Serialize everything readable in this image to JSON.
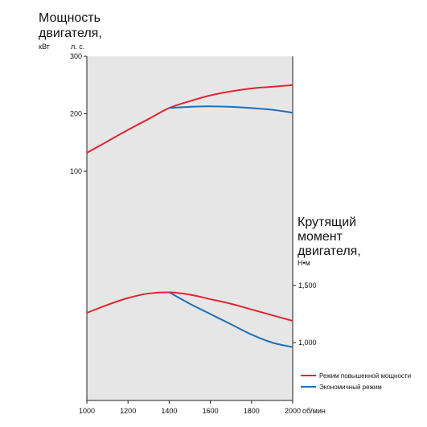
{
  "chart_data": {
    "type": "line",
    "x_ticks": [
      1000,
      1200,
      1400,
      1600,
      1800,
      2000
    ],
    "x_unit": "об/мин",
    "xlim": [
      1000,
      2000
    ],
    "power_axis": {
      "title_line1": "Мощность",
      "title_line2": "двигателя,",
      "unit_left": "кВт",
      "unit_right": "л. с.",
      "ticks": [
        100,
        200,
        300
      ],
      "tick_labels": [
        "100",
        "200",
        "300"
      ]
    },
    "torque_axis": {
      "title_line1": "Крутящий",
      "title_line2": "момент",
      "title_line3": "двигателя,",
      "unit": "Н•м",
      "ticks": [
        1000,
        1500
      ],
      "tick_labels": [
        "1,000",
        "1,500"
      ]
    },
    "series": [
      {
        "name": "Режим повышенной мощности",
        "color": "#e0252f",
        "power": {
          "x": [
            1000,
            1100,
            1200,
            1300,
            1400,
            1500,
            1600,
            1700,
            1800,
            1900,
            2000
          ],
          "y": [
            132,
            152,
            172,
            191,
            210,
            222,
            232,
            239,
            244,
            247,
            250
          ]
        },
        "torque": {
          "x": [
            1000,
            1100,
            1200,
            1300,
            1400,
            1500,
            1600,
            1700,
            1800,
            1900,
            2000
          ],
          "y": [
            1260,
            1330,
            1390,
            1430,
            1440,
            1420,
            1380,
            1340,
            1290,
            1240,
            1190
          ]
        }
      },
      {
        "name": "Экономичный режим",
        "color": "#1f6fb5",
        "power": {
          "x": [
            1400,
            1500,
            1600,
            1700,
            1800,
            1900,
            2000
          ],
          "y": [
            210,
            212,
            213,
            212,
            210,
            207,
            202
          ]
        },
        "torque": {
          "x": [
            1400,
            1500,
            1600,
            1700,
            1800,
            1900,
            2000
          ],
          "y": [
            1440,
            1340,
            1250,
            1160,
            1070,
            1000,
            960
          ]
        }
      }
    ]
  }
}
